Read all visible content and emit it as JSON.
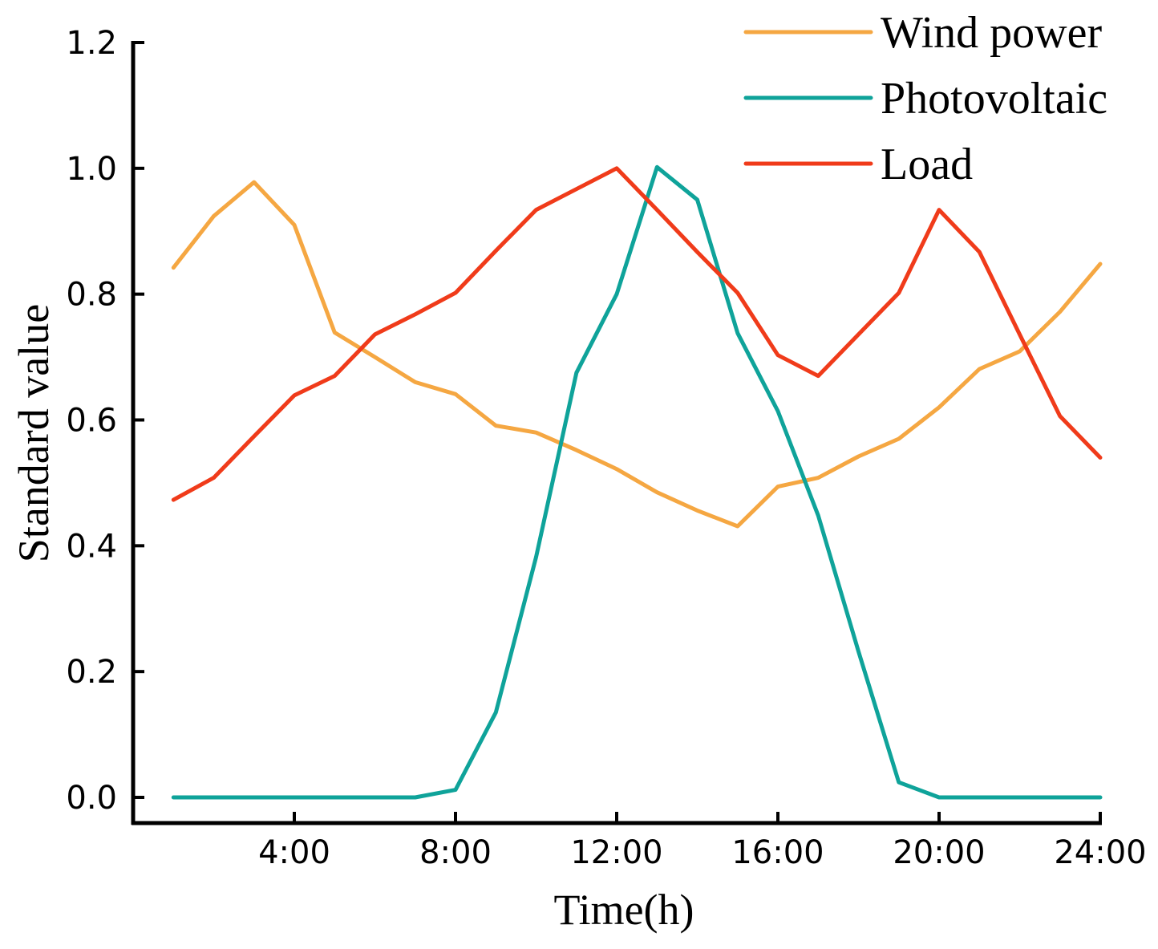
{
  "chart_data": {
    "type": "line",
    "title": "",
    "xlabel": "Time(h)",
    "ylabel": "Standard value",
    "xlim": [
      0,
      24
    ],
    "ylim": [
      0,
      1.2
    ],
    "x": [
      1,
      2,
      3,
      4,
      5,
      6,
      7,
      8,
      9,
      10,
      11,
      12,
      13,
      14,
      15,
      16,
      17,
      18,
      19,
      20,
      21,
      22,
      23,
      24
    ],
    "x_ticks": [
      4,
      8,
      12,
      16,
      20,
      24
    ],
    "x_tick_labels": [
      "4:00",
      "8:00",
      "12:00",
      "16:00",
      "20:00",
      "24:00"
    ],
    "y_ticks": [
      0,
      0.2,
      0.4,
      0.6,
      0.8,
      1.0,
      1.2
    ],
    "y_tick_labels": [
      "0.0",
      "0.2",
      "0.4",
      "0.6",
      "0.8",
      "1.0",
      "1.2"
    ],
    "grid": false,
    "legend_position": "top-right",
    "series": [
      {
        "name": "Wind power",
        "color": "#F5A742",
        "values": [
          0.842,
          0.924,
          0.978,
          0.91,
          0.739,
          0.7,
          0.66,
          0.641,
          0.591,
          0.58,
          0.552,
          0.522,
          0.485,
          0.456,
          0.431,
          0.494,
          0.508,
          0.542,
          0.57,
          0.62,
          0.681,
          0.709,
          0.772,
          0.848
        ]
      },
      {
        "name": "Photovoltaic",
        "color": "#0FA39A",
        "values": [
          0,
          0,
          0,
          0,
          0,
          0,
          0,
          0.012,
          0.135,
          0.382,
          0.675,
          0.8,
          1.002,
          0.95,
          0.738,
          0.614,
          0.448,
          0.232,
          0.024,
          0,
          0,
          0,
          0,
          0
        ]
      },
      {
        "name": "Load",
        "color": "#F03B1A",
        "values": [
          0.473,
          0.508,
          0.574,
          0.639,
          0.67,
          0.736,
          0.768,
          0.802,
          0.869,
          0.934,
          0.967,
          1.0,
          0.934,
          0.867,
          0.802,
          0.703,
          0.67,
          0.736,
          0.802,
          0.934,
          0.867,
          0.736,
          0.606,
          0.54
        ]
      }
    ]
  }
}
